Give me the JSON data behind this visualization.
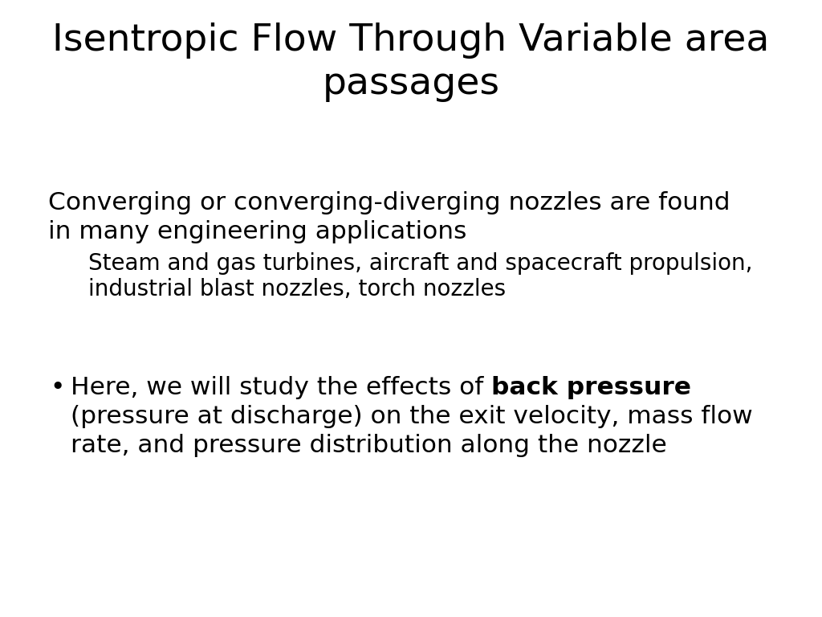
{
  "title_line1": "Isentropic Flow Through Variable area",
  "title_line2": "passages",
  "title_fontsize": 34,
  "title_color": "#000000",
  "background_color": "#ffffff",
  "body_fontsize": 22.5,
  "body_indent_fontsize": 20,
  "body_line1": "Converging or converging-diverging nozzles are found",
  "body_line2": "in many engineering applications",
  "body_indent1": "Steam and gas turbines, aircraft and spacecraft propulsion,",
  "body_indent2": "industrial blast nozzles, torch nozzles",
  "bullet_prefix": "•",
  "bullet_line1_normal": "Here, we will study the effects of ",
  "bullet_line1_bold": "back pressure",
  "bullet_line2": "(pressure at discharge) on the exit velocity, mass flow",
  "bullet_line3": "rate, and pressure distribution along the nozzle",
  "fig_width": 10.24,
  "fig_height": 7.68,
  "dpi": 100
}
